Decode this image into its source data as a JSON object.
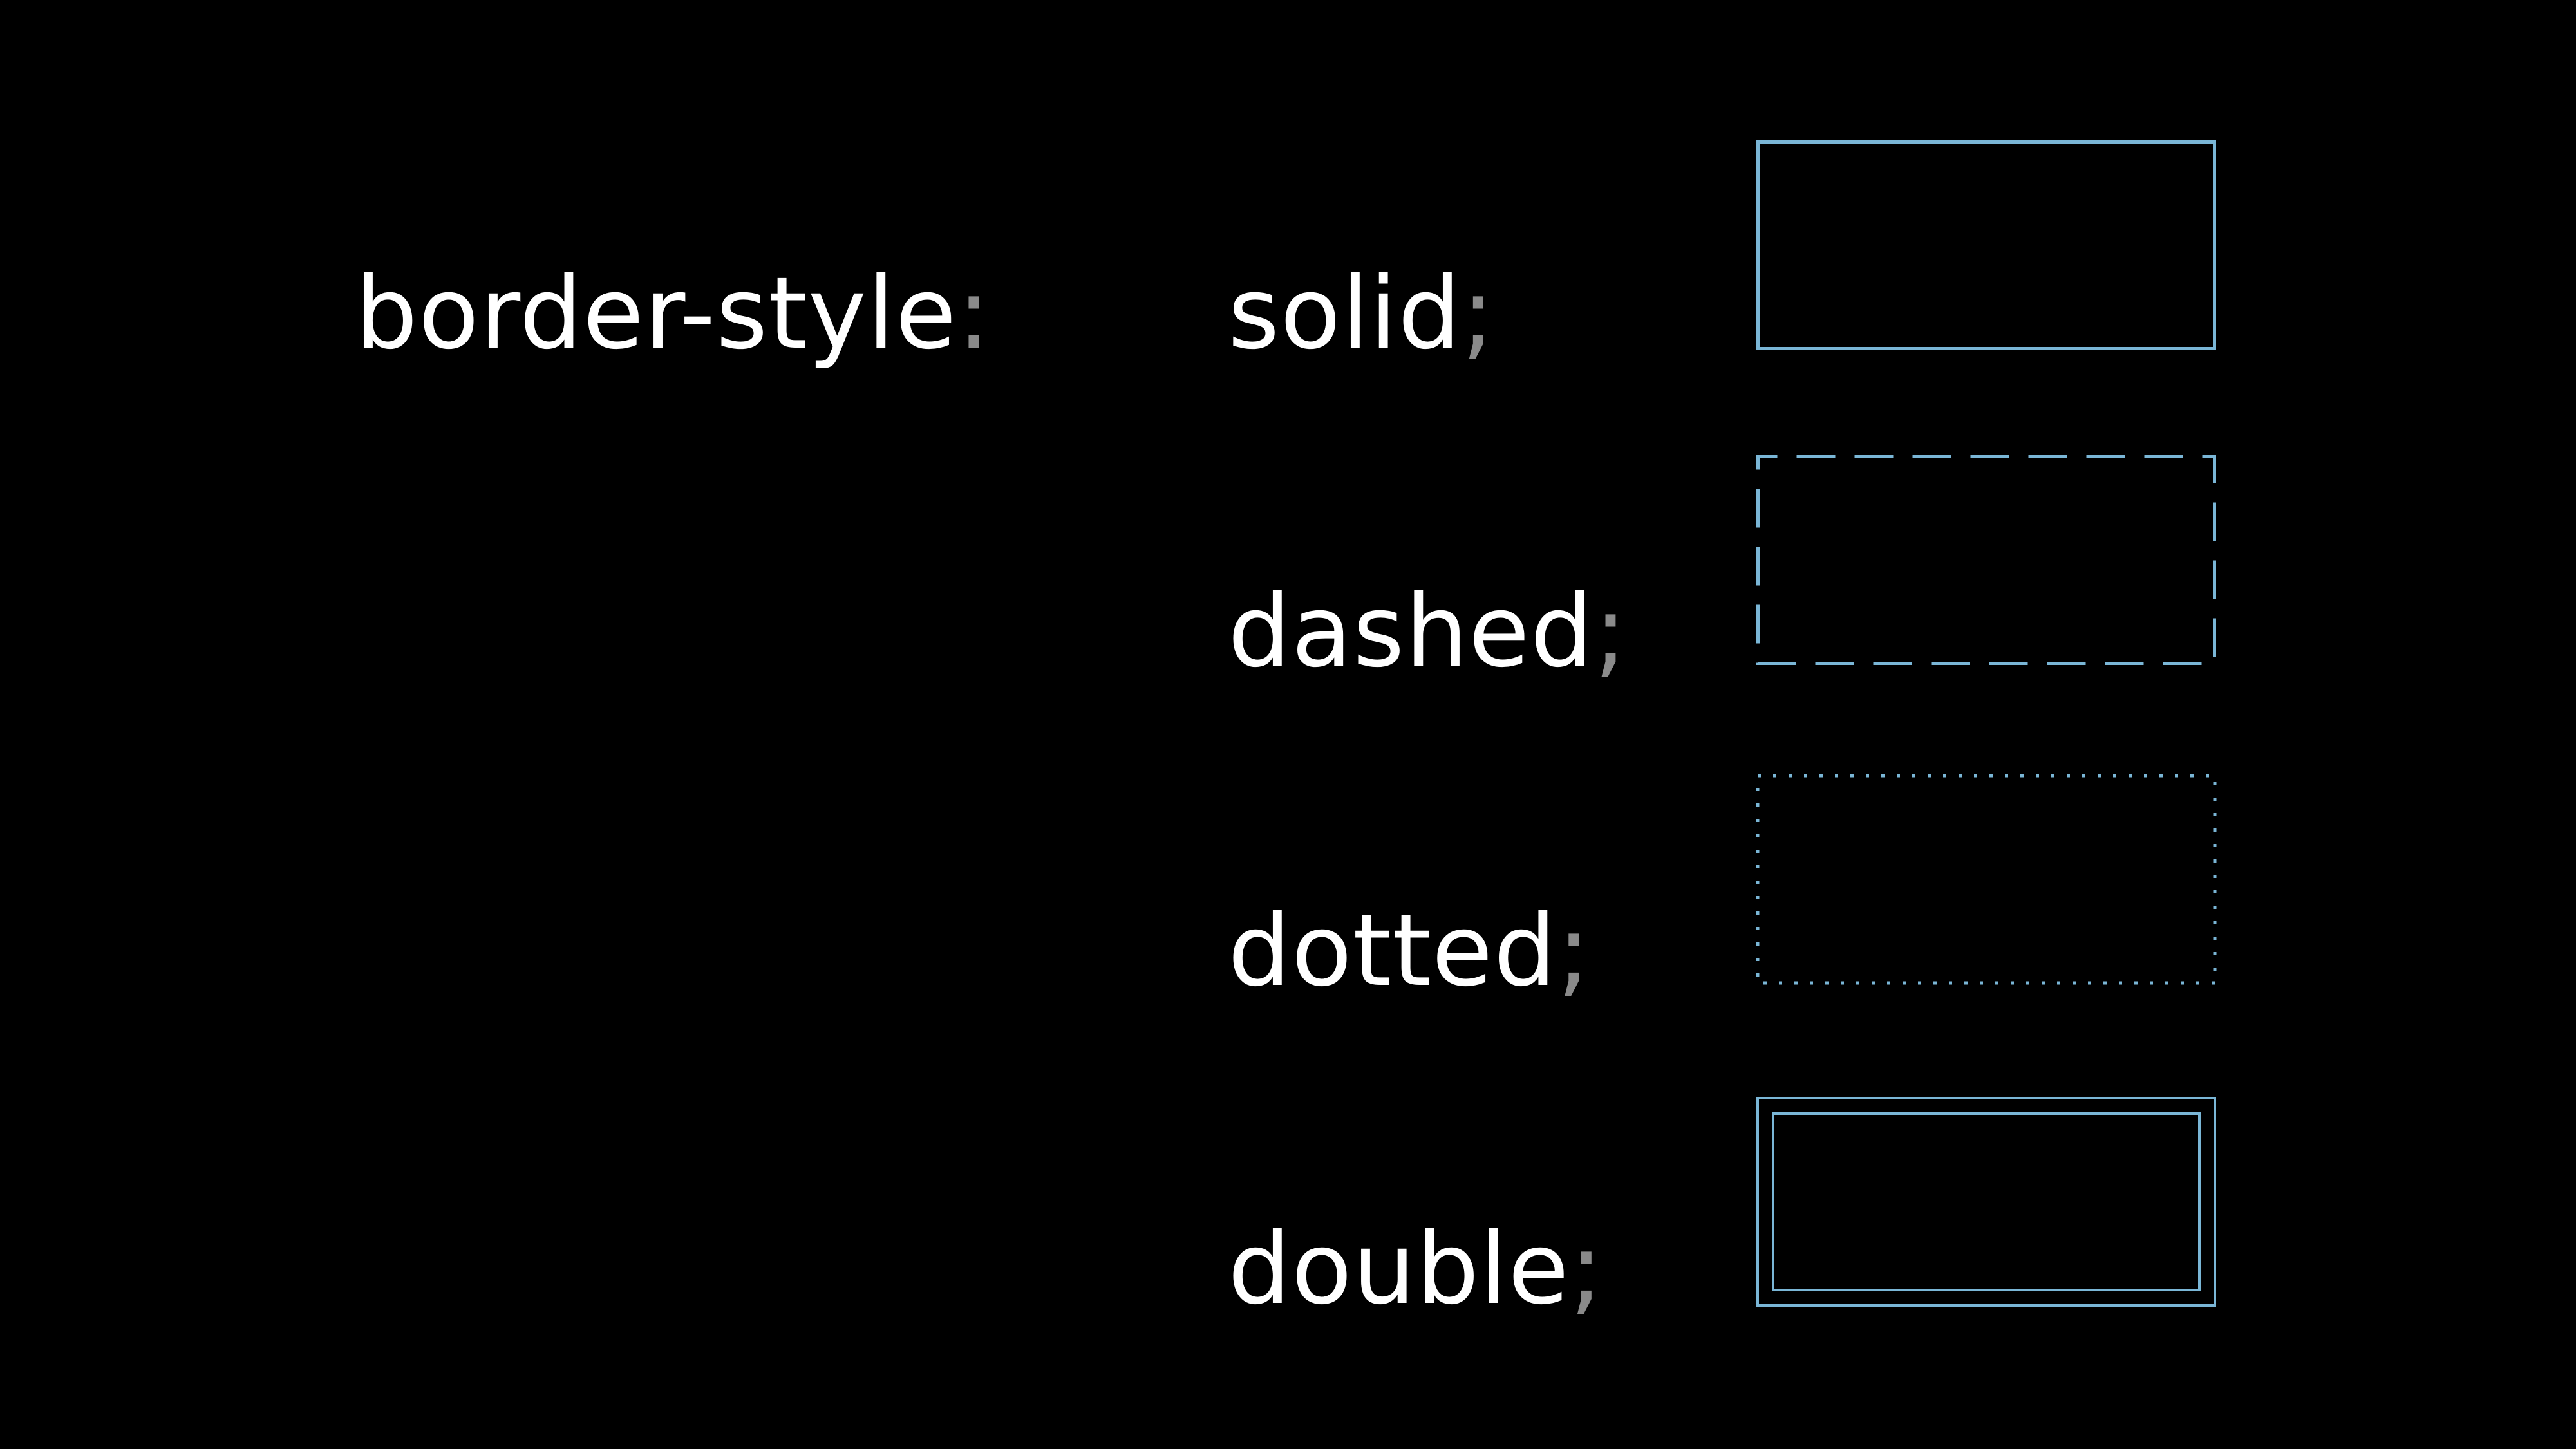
{
  "property": {
    "name": "border-style",
    "separator": ":"
  },
  "values": [
    {
      "label": "solid",
      "terminator": ";"
    },
    {
      "label": "dashed",
      "terminator": ";"
    },
    {
      "label": "dotted",
      "terminator": ";"
    },
    {
      "label": "double",
      "terminator": ";"
    }
  ],
  "colors": {
    "background": "#000000",
    "text": "#ffffff",
    "punctuation": "#8a8a8a",
    "border": "#7ab6d6"
  }
}
